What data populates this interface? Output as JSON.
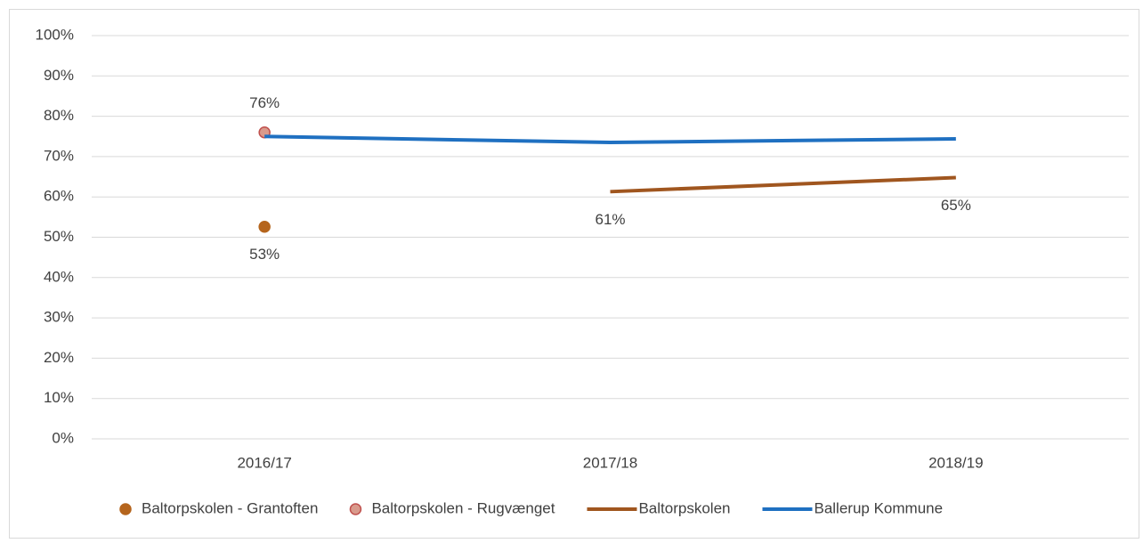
{
  "chart_data": {
    "type": "line",
    "categories": [
      "2016/17",
      "2017/18",
      "2018/19"
    ],
    "ylim": [
      0,
      100
    ],
    "yticks": [
      {
        "value": 0,
        "label": "0%"
      },
      {
        "value": 10,
        "label": "10%"
      },
      {
        "value": 20,
        "label": "20%"
      },
      {
        "value": 30,
        "label": "30%"
      },
      {
        "value": 40,
        "label": "40%"
      },
      {
        "value": 50,
        "label": "50%"
      },
      {
        "value": 60,
        "label": "60%"
      },
      {
        "value": 70,
        "label": "70%"
      },
      {
        "value": 80,
        "label": "80%"
      },
      {
        "value": 90,
        "label": "90%"
      },
      {
        "value": 100,
        "label": "100%"
      }
    ],
    "grid": true,
    "legend": "bottom",
    "series": [
      {
        "name": "Baltorpskolen - Grantoften",
        "type": "scatter",
        "color": "#b5651d",
        "edge": "#b5651d",
        "values": [
          52.6,
          null,
          null
        ],
        "value_labels": [
          "53%",
          null,
          null
        ],
        "label_position": "below"
      },
      {
        "name": "Baltorpskolen - Rugvænget",
        "type": "scatter",
        "color": "#d99a8c",
        "edge": "#c0504d",
        "values": [
          76,
          null,
          null
        ],
        "value_labels": [
          "76%",
          null,
          null
        ],
        "label_position": "above"
      },
      {
        "name": "Baltorpskolen",
        "type": "line",
        "color": "#a0561f",
        "values": [
          null,
          61.3,
          64.8
        ],
        "value_labels": [
          null,
          "61%",
          "65%"
        ],
        "label_position": "below"
      },
      {
        "name": "Ballerup Kommune",
        "type": "line",
        "color": "#1f70c1",
        "values": [
          75,
          73.5,
          74.4
        ]
      }
    ]
  }
}
